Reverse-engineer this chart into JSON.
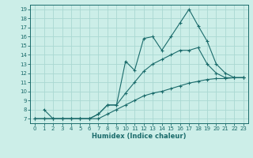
{
  "xlabel": "Humidex (Indice chaleur)",
  "bg_color": "#cceee8",
  "grid_color": "#aad8d2",
  "line_color": "#1a6b6b",
  "xlim": [
    -0.5,
    23.5
  ],
  "ylim": [
    6.5,
    19.5
  ],
  "yticks": [
    7,
    8,
    9,
    10,
    11,
    12,
    13,
    14,
    15,
    16,
    17,
    18,
    19
  ],
  "xticks": [
    0,
    1,
    2,
    3,
    4,
    5,
    6,
    7,
    8,
    9,
    10,
    11,
    12,
    13,
    14,
    15,
    16,
    17,
    18,
    19,
    20,
    21,
    22,
    23
  ],
  "curve1_x": [
    1,
    2,
    3,
    4,
    5,
    6,
    7,
    8,
    9,
    10,
    11,
    12,
    13,
    14,
    15,
    16,
    17,
    18,
    19,
    20,
    21,
    22,
    23
  ],
  "curve1_y": [
    8.0,
    7.0,
    7.0,
    7.0,
    7.0,
    7.0,
    7.5,
    8.5,
    8.5,
    13.3,
    12.3,
    15.8,
    16.0,
    14.5,
    16.0,
    17.5,
    19.0,
    17.2,
    15.5,
    13.0,
    12.0,
    11.5,
    11.5
  ],
  "curve2_x": [
    0,
    1,
    2,
    3,
    4,
    5,
    6,
    7,
    8,
    9,
    10,
    11,
    12,
    13,
    14,
    15,
    16,
    17,
    18,
    19,
    20,
    21,
    22,
    23
  ],
  "curve2_y": [
    7.0,
    7.0,
    7.0,
    7.0,
    7.0,
    7.0,
    7.0,
    7.5,
    8.5,
    8.5,
    9.8,
    11.0,
    12.2,
    13.0,
    13.5,
    14.0,
    14.5,
    14.5,
    14.8,
    13.0,
    12.0,
    11.5,
    11.5,
    11.5
  ],
  "curve3_x": [
    0,
    1,
    2,
    3,
    4,
    5,
    6,
    7,
    8,
    9,
    10,
    11,
    12,
    13,
    14,
    15,
    16,
    17,
    18,
    19,
    20,
    21,
    22,
    23
  ],
  "curve3_y": [
    7.0,
    7.0,
    7.0,
    7.0,
    7.0,
    7.0,
    7.0,
    7.0,
    7.5,
    8.0,
    8.5,
    9.0,
    9.5,
    9.8,
    10.0,
    10.3,
    10.6,
    10.9,
    11.1,
    11.3,
    11.4,
    11.4,
    11.5,
    11.5
  ]
}
